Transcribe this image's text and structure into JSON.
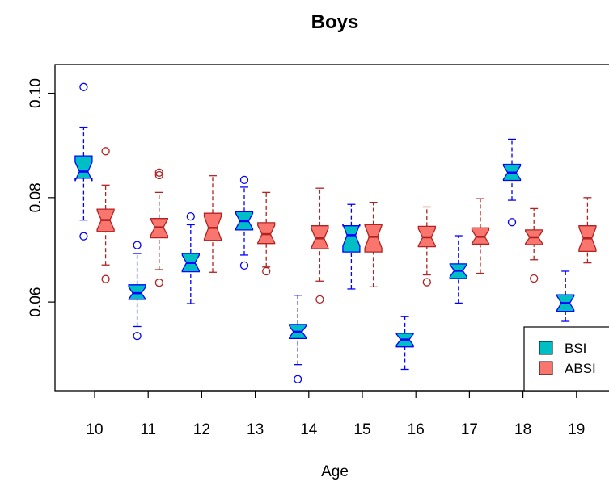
{
  "chart_data": {
    "type": "boxplot",
    "title": "Boys",
    "xlabel": "Age",
    "ylabel": "",
    "categories": [
      "10",
      "11",
      "12",
      "13",
      "14",
      "15",
      "16",
      "17",
      "18",
      "19"
    ],
    "y_ticks": [
      {
        "value": 0.06,
        "label": "0.06"
      },
      {
        "value": 0.08,
        "label": "0.08"
      },
      {
        "value": 0.1,
        "label": "0.10"
      }
    ],
    "ylim": [
      0.043,
      0.1055
    ],
    "legend_position": "bottom-right",
    "series": [
      {
        "name": "BSI",
        "fill": "#00bfc4",
        "stroke": "#0000ff",
        "boxes": [
          {
            "whisker_low": 0.0757,
            "q1": 0.0837,
            "median": 0.085,
            "q3": 0.088,
            "whisker_high": 0.0935,
            "outliers": [
              0.1012,
              0.0726
            ]
          },
          {
            "whisker_low": 0.0553,
            "q1": 0.0605,
            "median": 0.0617,
            "q3": 0.0633,
            "whisker_high": 0.0693,
            "outliers": [
              0.0709,
              0.0535
            ]
          },
          {
            "whisker_low": 0.0597,
            "q1": 0.0658,
            "median": 0.0675,
            "q3": 0.0693,
            "whisker_high": 0.0748,
            "outliers": [
              0.0764
            ]
          },
          {
            "whisker_low": 0.069,
            "q1": 0.0738,
            "median": 0.0755,
            "q3": 0.0773,
            "whisker_high": 0.082,
            "outliers": [
              0.0834,
              0.067
            ]
          },
          {
            "whisker_low": 0.048,
            "q1": 0.053,
            "median": 0.0543,
            "q3": 0.0557,
            "whisker_high": 0.0613,
            "outliers": [
              0.0452
            ]
          },
          {
            "whisker_low": 0.0625,
            "q1": 0.0696,
            "median": 0.0728,
            "q3": 0.0746,
            "whisker_high": 0.0787,
            "outliers": []
          },
          {
            "whisker_low": 0.0471,
            "q1": 0.0514,
            "median": 0.0528,
            "q3": 0.054,
            "whisker_high": 0.0572,
            "outliers": []
          },
          {
            "whisker_low": 0.0598,
            "q1": 0.0645,
            "median": 0.066,
            "q3": 0.0673,
            "whisker_high": 0.0727,
            "outliers": []
          },
          {
            "whisker_low": 0.0795,
            "q1": 0.0833,
            "median": 0.0848,
            "q3": 0.0864,
            "whisker_high": 0.0912,
            "outliers": [
              0.0753
            ]
          },
          {
            "whisker_low": 0.0563,
            "q1": 0.0582,
            "median": 0.0598,
            "q3": 0.0614,
            "whisker_high": 0.0659,
            "outliers": []
          }
        ]
      },
      {
        "name": "ABSI",
        "fill": "#f8766d",
        "stroke": "#b22222",
        "boxes": [
          {
            "whisker_low": 0.0671,
            "q1": 0.0735,
            "median": 0.0757,
            "q3": 0.0778,
            "whisker_high": 0.0824,
            "outliers": [
              0.0889,
              0.0644
            ]
          },
          {
            "whisker_low": 0.0662,
            "q1": 0.0723,
            "median": 0.0743,
            "q3": 0.076,
            "whisker_high": 0.081,
            "outliers": [
              0.0848,
              0.0843,
              0.0637
            ]
          },
          {
            "whisker_low": 0.0657,
            "q1": 0.0718,
            "median": 0.0742,
            "q3": 0.077,
            "whisker_high": 0.0842,
            "outliers": []
          },
          {
            "whisker_low": 0.0667,
            "q1": 0.0712,
            "median": 0.073,
            "q3": 0.0752,
            "whisker_high": 0.081,
            "outliers": [
              0.0659
            ]
          },
          {
            "whisker_low": 0.064,
            "q1": 0.0702,
            "median": 0.0722,
            "q3": 0.0746,
            "whisker_high": 0.0818,
            "outliers": [
              0.0605
            ]
          },
          {
            "whisker_low": 0.0629,
            "q1": 0.0696,
            "median": 0.0725,
            "q3": 0.0748,
            "whisker_high": 0.0791,
            "outliers": []
          },
          {
            "whisker_low": 0.0652,
            "q1": 0.0706,
            "median": 0.0724,
            "q3": 0.0745,
            "whisker_high": 0.0782,
            "outliers": [
              0.0638
            ]
          },
          {
            "whisker_low": 0.0655,
            "q1": 0.0711,
            "median": 0.0725,
            "q3": 0.0742,
            "whisker_high": 0.0798,
            "outliers": []
          },
          {
            "whisker_low": 0.0681,
            "q1": 0.071,
            "median": 0.0724,
            "q3": 0.0738,
            "whisker_high": 0.0779,
            "outliers": [
              0.0645
            ]
          },
          {
            "whisker_low": 0.0675,
            "q1": 0.0697,
            "median": 0.0722,
            "q3": 0.0746,
            "whisker_high": 0.08,
            "outliers": []
          }
        ]
      }
    ]
  }
}
